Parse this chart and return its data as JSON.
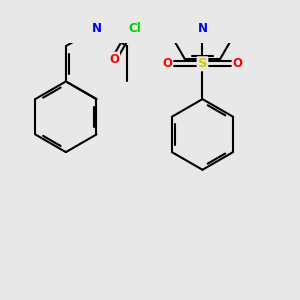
{
  "bg_color": "#e8e8e8",
  "bond_color": "#000000",
  "N_color": "#0000ff",
  "O_color": "#ff0000",
  "S_color": "#cccc00",
  "Cl_color": "#00cc00",
  "line_width": 1.5,
  "figsize": [
    3.0,
    3.0
  ],
  "dpi": 100,
  "xlim": [
    -1.85,
    1.65
  ],
  "ylim": [
    -1.45,
    1.1
  ]
}
